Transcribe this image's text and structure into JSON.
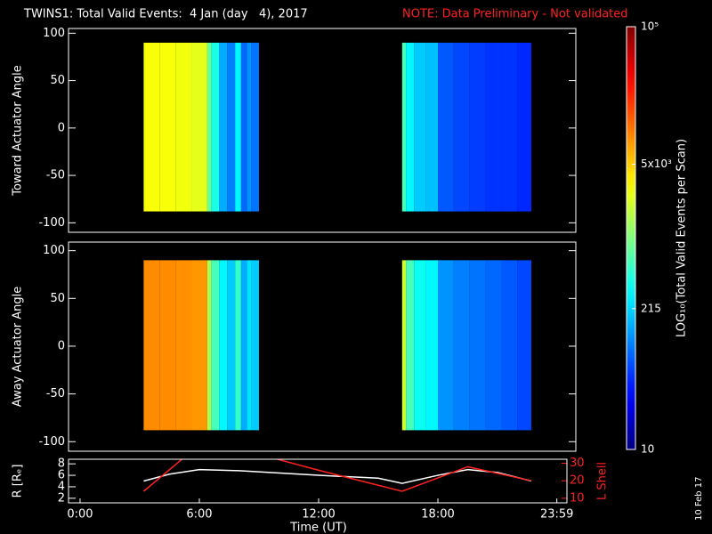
{
  "title": "TWINS1: Total Valid Events:  4 Jan (day   4), 2017",
  "note": "NOTE: Data Preliminary - Not validated",
  "date": "10 Feb 17",
  "chart_data": [
    {
      "type": "heatmap",
      "ylabel": "Toward Actuator Angle",
      "x_bins": [
        3.2,
        4.0,
        4.8,
        5.6,
        6.4,
        6.6,
        7.0,
        7.4,
        7.8,
        8.1,
        8.4,
        8.6,
        9.0,
        16.2,
        16.4,
        16.8,
        17.4,
        18.0,
        18.8,
        19.6,
        20.4,
        21.2,
        22.0,
        22.7
      ],
      "y_bins": [
        -88,
        90
      ],
      "values": [
        3000,
        3000,
        2800,
        2500,
        800,
        400,
        150,
        100,
        300,
        80,
        120,
        90,
        null,
        600,
        300,
        200,
        180,
        70,
        60,
        55,
        50,
        50,
        45
      ],
      "xlim": [
        -0.58,
        24.94
      ],
      "ylim": [
        -110,
        105
      ],
      "yticks": [
        -100,
        -50,
        0,
        50,
        100
      ],
      "colormap": "jet"
    },
    {
      "type": "heatmap",
      "ylabel": "Away Actuator Angle",
      "x_bins": [
        3.2,
        4.0,
        4.8,
        5.6,
        6.4,
        6.6,
        7.0,
        7.4,
        7.8,
        8.1,
        8.4,
        8.6,
        9.0,
        16.2,
        16.4,
        16.8,
        17.4,
        18.0,
        18.8,
        19.6,
        20.4,
        21.2,
        22.0,
        22.7
      ],
      "y_bins": [
        -88,
        90
      ],
      "values": [
        9000,
        9000,
        8500,
        8000,
        1500,
        600,
        300,
        200,
        500,
        150,
        250,
        200,
        null,
        2000,
        600,
        350,
        300,
        120,
        100,
        90,
        80,
        70,
        60
      ],
      "xlim": [
        -0.58,
        24.94
      ],
      "ylim": [
        -110,
        109
      ],
      "yticks": [
        -100,
        -50,
        0,
        50,
        100
      ],
      "colormap": "jet"
    },
    {
      "type": "line",
      "ylabel": "R [Rₑ]",
      "y2label": "L Shell",
      "xlabel": "Time (UT)",
      "series": [
        {
          "color": "#ffffff",
          "x": [
            3.2,
            4.5,
            6.0,
            8.0,
            12.0,
            15.0,
            16.2,
            18.0,
            19.5,
            21.0,
            22.7
          ],
          "values": [
            5.0,
            6.2,
            7.0,
            6.8,
            6.0,
            5.5,
            4.6,
            6.0,
            7.0,
            6.5,
            5.0
          ]
        },
        {
          "color": "#ff2020",
          "axis": "y2",
          "x": [
            3.2,
            5.2,
            7.0,
            9.7,
            12.0,
            16.2,
            19.5,
            22.7
          ],
          "values": [
            14,
            33,
            null,
            33,
            26,
            14,
            28,
            20
          ]
        }
      ],
      "xlim": [
        -0.58,
        24.49
      ],
      "ylim": [
        1.2,
        8.8
      ],
      "yticks": [
        2,
        4,
        6,
        8
      ],
      "y2lim": [
        7.4,
        32.3
      ],
      "y2ticks": [
        10,
        20,
        30
      ],
      "xticks": [
        {
          "value": 0,
          "label": "0:00"
        },
        {
          "value": 6,
          "label": "6:00"
        },
        {
          "value": 12,
          "label": "12:00"
        },
        {
          "value": 18,
          "label": "18:00"
        },
        {
          "value": 23.983,
          "label": "23:59"
        }
      ]
    },
    {
      "type": "colorbar",
      "label": "LOG₁₀(Total Valid Events per Scan)",
      "log": true,
      "colormap": "jet",
      "ylim": [
        10,
        100000
      ],
      "yticks": [
        10,
        215,
        {
          "value": 5000,
          "label": "5x10³"
        },
        {
          "value": 100000,
          "label": "10⁵"
        }
      ]
    }
  ]
}
